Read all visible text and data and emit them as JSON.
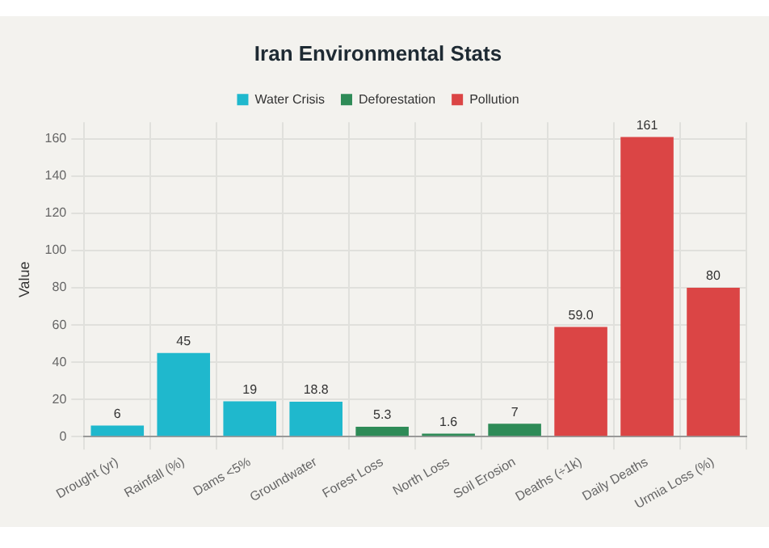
{
  "chart_data": {
    "type": "bar",
    "title": "Iran Environmental Stats",
    "ylabel": "Value",
    "categories": [
      "Drought (yr)",
      "Rainfall (%)",
      "Dams <5%",
      "Groundwater",
      "Forest Loss",
      "North Loss",
      "Soil Erosion",
      "Deaths (÷1k)",
      "Daily Deaths",
      "Urmia Loss (%)"
    ],
    "series": [
      {
        "name": "Water Crisis",
        "color": "#1fb8cd",
        "values": [
          6,
          45,
          19,
          18.8,
          null,
          null,
          null,
          null,
          null,
          null
        ],
        "value_labels": [
          "6",
          "45",
          "19",
          "18.8",
          null,
          null,
          null,
          null,
          null,
          null
        ]
      },
      {
        "name": "Deforestation",
        "color": "#2e8b57",
        "values": [
          null,
          null,
          null,
          null,
          5.3,
          1.6,
          7,
          null,
          null,
          null
        ],
        "value_labels": [
          null,
          null,
          null,
          null,
          "5.3",
          "1.6",
          "7",
          null,
          null,
          null
        ]
      },
      {
        "name": "Pollution",
        "color": "#db4545",
        "values": [
          null,
          null,
          null,
          null,
          null,
          null,
          null,
          59,
          161,
          80
        ],
        "value_labels": [
          null,
          null,
          null,
          null,
          null,
          null,
          null,
          "59.0",
          "161",
          "80"
        ]
      }
    ],
    "ylim": [
      0,
      169
    ],
    "yticks": [
      0,
      20,
      40,
      60,
      80,
      100,
      120,
      140,
      160
    ],
    "grid": true,
    "legend": "top"
  }
}
